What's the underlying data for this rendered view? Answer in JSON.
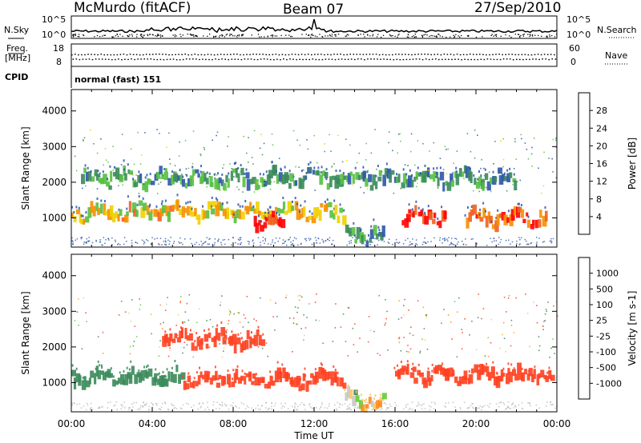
{
  "header": {
    "station": "McMurdo (fitACF)",
    "beam": "Beam 07",
    "date": "27/Sep/2010"
  },
  "top_strip": {
    "left_label": "N.Sky",
    "right_label": "N.Search",
    "left_ticks": [
      "10^5",
      "10^0"
    ],
    "right_ticks": [
      "10^5",
      "10^0"
    ]
  },
  "freq_strip": {
    "left_label_1": "Freq.",
    "left_label_2": "[MHz]",
    "right_label": "Nave",
    "left_ticks": [
      "18",
      "8"
    ],
    "right_ticks": [
      "60",
      "0"
    ]
  },
  "cpid": {
    "label": "CPID",
    "value": "normal (fast) 151"
  },
  "colors": {
    "power_scale": [
      "#0000ff",
      "#2d55aa",
      "#3a8a5a",
      "#55c040",
      "#f0d000",
      "#f59000",
      "#f06020",
      "#ff0000"
    ],
    "velocity_scale": [
      "#ff0000",
      "#ff4020",
      "#ff8a20",
      "#ffa820",
      "#f7c86a",
      "#c8c8c8",
      "#66cc33",
      "#3a8a5a",
      "#2e6a8a",
      "#0044cc"
    ]
  },
  "chart_data": [
    {
      "type": "heatmap",
      "title": "",
      "xlabel": "Time UT",
      "ylabel": "Slant Range [km]",
      "x_ticks": [
        "00:00",
        "04:00",
        "08:00",
        "12:00",
        "16:00",
        "20:00",
        "00:00"
      ],
      "y_ticks": [
        "1000",
        "2000",
        "3000",
        "4000"
      ],
      "ylim": [
        180,
        4600
      ],
      "colorbar": {
        "label": "Power [dB]",
        "ticks": [
          "4",
          "8",
          "12",
          "16",
          "20",
          "24",
          "28"
        ],
        "range": [
          0,
          30
        ]
      },
      "bands": [
        {
          "t_start": 0.0,
          "t_end": 13.5,
          "range_km": 1150,
          "level": 18
        },
        {
          "t_start": 9.0,
          "t_end": 10.5,
          "range_km": 900,
          "level": 28
        },
        {
          "t_start": 16.3,
          "t_end": 18.5,
          "range_km": 1050,
          "level": 28
        },
        {
          "t_start": 19.5,
          "t_end": 23.5,
          "range_km": 1000,
          "level": 24
        },
        {
          "t_start": 0.5,
          "t_end": 22.0,
          "range_km": 2100,
          "level": 10
        },
        {
          "t_start": 13.5,
          "t_end": 15.5,
          "range_km": 500,
          "level": 10
        }
      ]
    },
    {
      "type": "heatmap",
      "title": "",
      "xlabel": "Time UT",
      "ylabel": "Slant Range [km]",
      "x_ticks": [
        "00:00",
        "04:00",
        "08:00",
        "12:00",
        "16:00",
        "20:00",
        "00:00"
      ],
      "y_ticks": [
        "1000",
        "2000",
        "3000",
        "4000"
      ],
      "ylim": [
        180,
        4600
      ],
      "colorbar": {
        "label": "Velocity [m s-1]",
        "ticks": [
          "1000",
          "500",
          "100",
          "25",
          "-25",
          "-100",
          "-500",
          "-1000"
        ],
        "range": [
          -1000,
          1000
        ]
      },
      "bands": [
        {
          "t_start": 0.0,
          "t_end": 5.5,
          "range_km": 1150,
          "level": 300
        },
        {
          "t_start": 5.5,
          "t_end": 13.5,
          "range_km": 1100,
          "level": -200
        },
        {
          "t_start": 4.5,
          "t_end": 9.5,
          "range_km": 2200,
          "level": -250
        },
        {
          "t_start": 16.0,
          "t_end": 23.8,
          "range_km": 1200,
          "level": -250
        },
        {
          "t_start": 13.5,
          "t_end": 15.5,
          "range_km": 500,
          "level": 10
        }
      ]
    }
  ]
}
